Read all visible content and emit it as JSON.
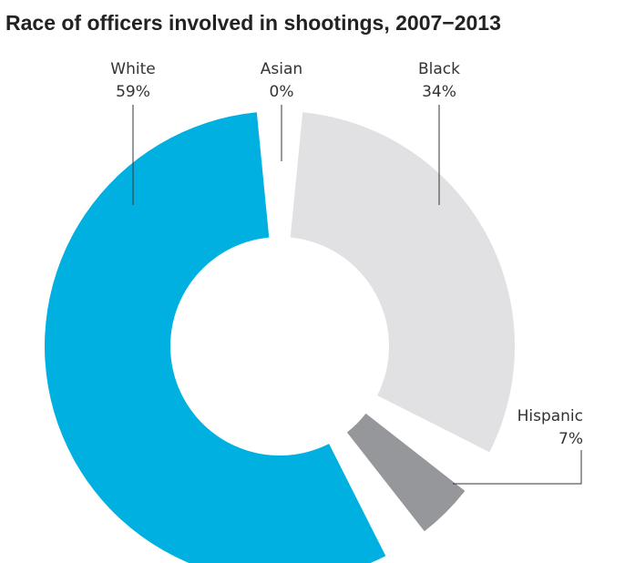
{
  "chart_data": {
    "type": "pie",
    "title": "Race of officers involved in shootings, 2007−2013",
    "slices": [
      {
        "label": "Black",
        "value": 34,
        "value_text": "34%",
        "color": "#e1e1e3"
      },
      {
        "label": "Hispanic",
        "value": 7,
        "value_text": "7%",
        "color": "#96979a"
      },
      {
        "label": "White",
        "value": 59,
        "value_text": "59%",
        "color": "#00b0e1"
      },
      {
        "label": "Asian",
        "value": 0,
        "value_text": "0%",
        "color": "#ffffff"
      }
    ]
  }
}
